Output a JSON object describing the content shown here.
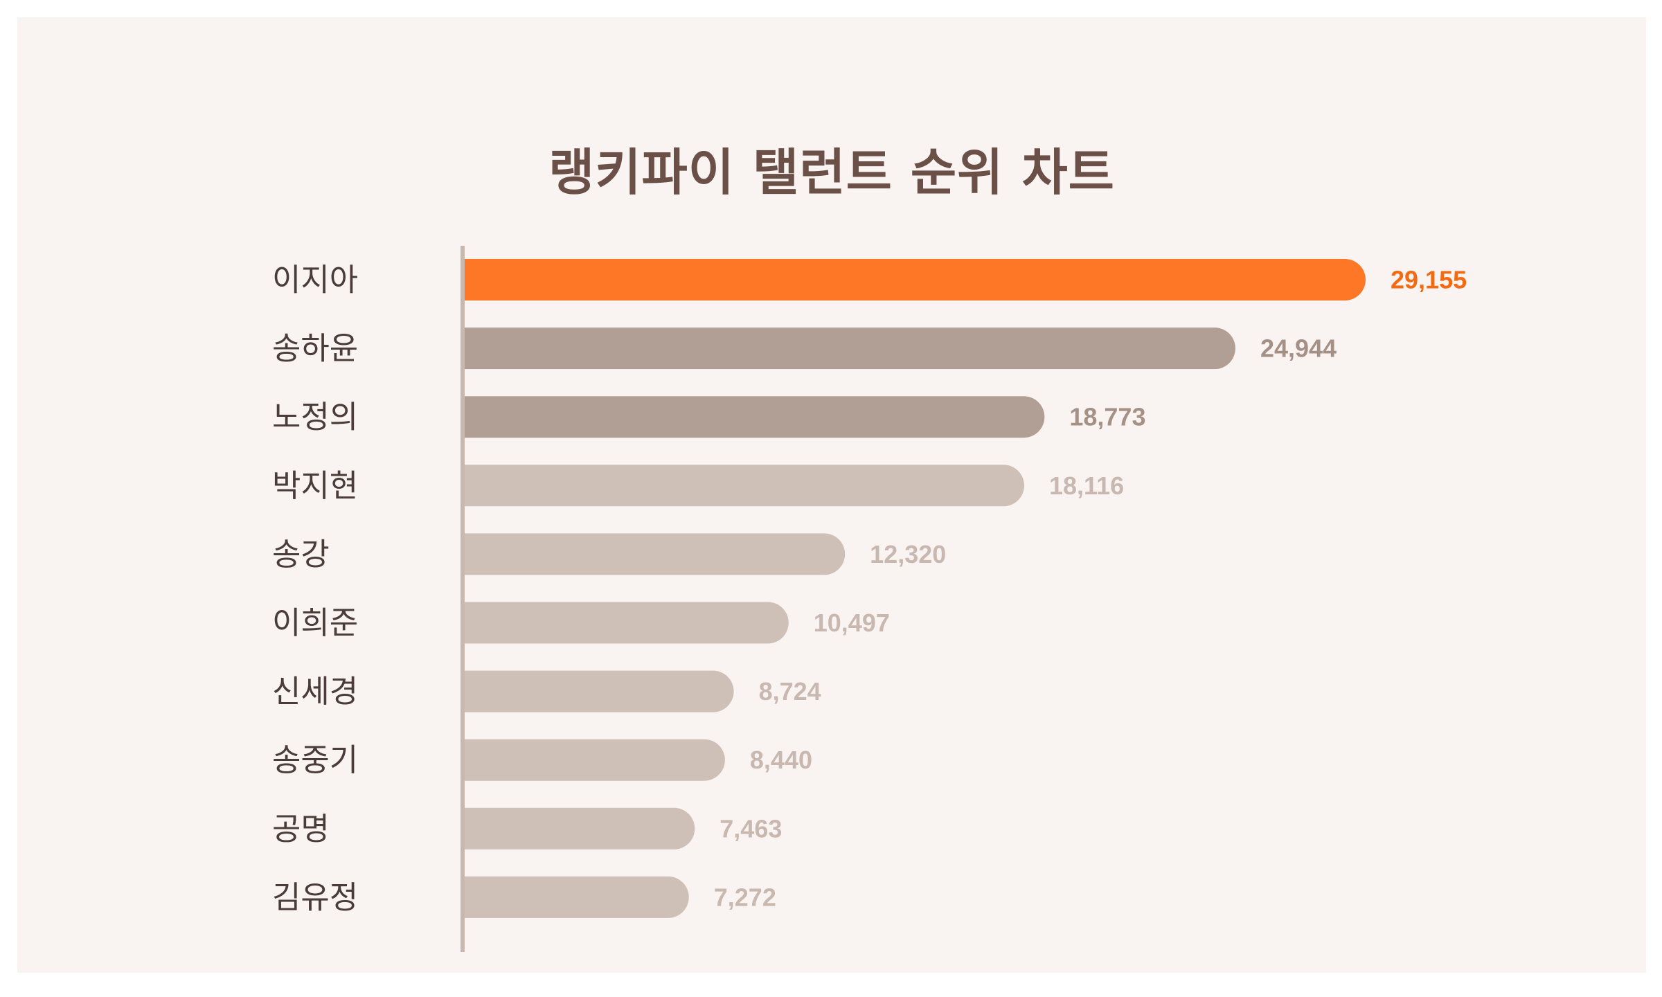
{
  "chart_data": {
    "type": "bar",
    "orientation": "horizontal",
    "title": "랭키파이 탤런트 순위 차트",
    "categories": [
      "이지아",
      "송하윤",
      "노정의",
      "박지현",
      "송강",
      "이희준",
      "신세경",
      "송중기",
      "공명",
      "김유정"
    ],
    "values": [
      29155,
      24944,
      18773,
      18116,
      12320,
      10497,
      8724,
      8440,
      7463,
      7272
    ],
    "value_labels": [
      "29,155",
      "24,944",
      "18,773",
      "18,116",
      "12,320",
      "10,497",
      "8,724",
      "8,440",
      "7,463",
      "7,272"
    ],
    "xlim": [
      0,
      29155
    ],
    "grid": false,
    "legend": "none",
    "colors": {
      "highlight": "#fe7726",
      "highlight_label": "#f26a12",
      "top_tier": "#b19f96",
      "top_tier_label": "#a59086",
      "rest": "#cfc0b7",
      "rest_label": "#c8b8af",
      "axis": "#c9b8ae",
      "category_text": "#4a3c38",
      "title": "#6b5047",
      "background": "#f9f4f2"
    }
  }
}
